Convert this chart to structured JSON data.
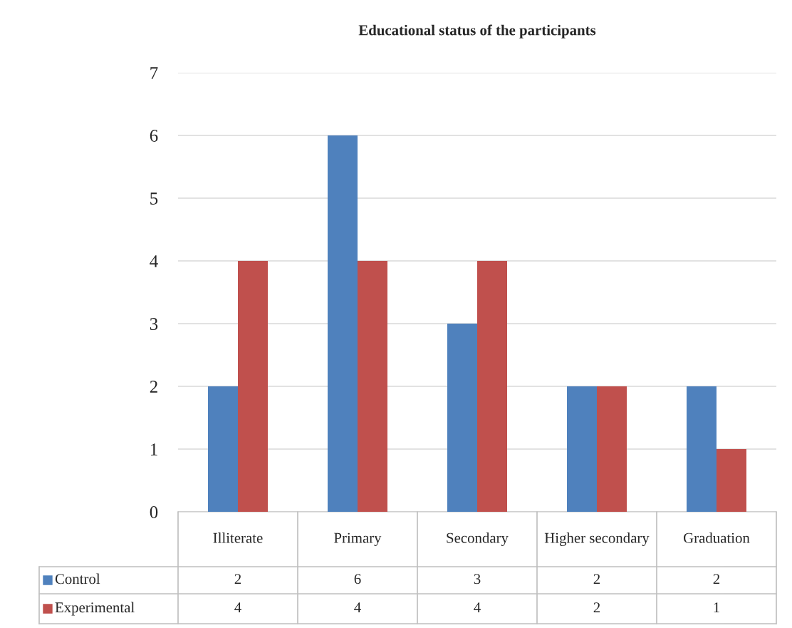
{
  "chart_data": {
    "type": "bar",
    "title": "Educational status of the participants",
    "categories": [
      "Illiterate",
      "Primary",
      "Secondary",
      "Higher secondary",
      "Graduation"
    ],
    "series": [
      {
        "name": "Control",
        "color": "#4f81bd",
        "values": [
          2,
          6,
          3,
          2,
          2
        ]
      },
      {
        "name": "Experimental",
        "color": "#c0504d",
        "values": [
          4,
          4,
          4,
          2,
          1
        ]
      }
    ],
    "ylim": [
      0,
      7
    ],
    "yticks": [
      0,
      1,
      2,
      3,
      4,
      5,
      6,
      7
    ],
    "grid": "y",
    "legend": "bottom",
    "data_labels": true
  }
}
